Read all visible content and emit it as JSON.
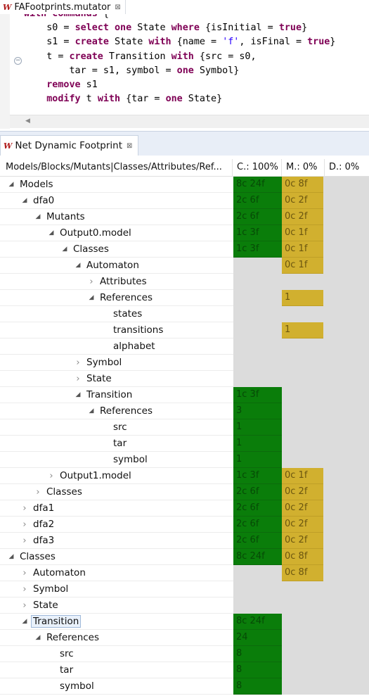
{
  "editor": {
    "tab_title": "FAFootprints.mutator",
    "tab_close": "⊠",
    "app_glyph": "W",
    "code_lines": [
      [
        [
          "kw",
          "with commands"
        ],
        [
          "t",
          " {"
        ]
      ],
      [
        [
          "t",
          "    s0 = "
        ],
        [
          "kw",
          "select one"
        ],
        [
          "t",
          " State "
        ],
        [
          "kw",
          "where"
        ],
        [
          "t",
          " {isInitial = "
        ],
        [
          "kw",
          "true"
        ],
        [
          "t",
          "}"
        ]
      ],
      [
        [
          "t",
          "    s1 = "
        ],
        [
          "kw",
          "create"
        ],
        [
          "t",
          " State "
        ],
        [
          "kw",
          "with"
        ],
        [
          "t",
          " {name = "
        ],
        [
          "str",
          "'f'"
        ],
        [
          "t",
          ", isFinal = "
        ],
        [
          "kw",
          "true"
        ],
        [
          "t",
          "}"
        ]
      ],
      [
        [
          "t",
          "    t = "
        ],
        [
          "kw",
          "create"
        ],
        [
          "t",
          " Transition "
        ],
        [
          "kw",
          "with"
        ],
        [
          "t",
          " {src = s0,"
        ]
      ],
      [
        [
          "t",
          "        tar = s1, symbol = "
        ],
        [
          "kw",
          "one"
        ],
        [
          "t",
          " Symbol}"
        ]
      ],
      [
        [
          "t",
          "    "
        ],
        [
          "kw",
          "remove"
        ],
        [
          "t",
          " s1"
        ]
      ],
      [
        [
          "t",
          "    "
        ],
        [
          "kw",
          "modify"
        ],
        [
          "t",
          " t "
        ],
        [
          "kw",
          "with"
        ],
        [
          "t",
          " {tar = "
        ],
        [
          "kw",
          "one"
        ],
        [
          "t",
          " State}"
        ]
      ]
    ],
    "fold_glyph": "−",
    "scroll_left": "◀"
  },
  "view": {
    "tab_title": "Net Dynamic Footprint",
    "tab_close": "⊠",
    "app_glyph": "W",
    "columns": {
      "tree": "Models/Blocks/Mutants|Classes/Attributes/Ref...",
      "coverage": "C.: 100%",
      "mutation": "M.: 0%",
      "deletion": "D.: 0%"
    },
    "colors": {
      "green": "#0a7d0a",
      "gold": "#d1b02f",
      "grey": "#dcdcdc"
    },
    "rows": [
      {
        "label": "Models",
        "level": 0,
        "toggle": "expanded",
        "cov": "8c 24f",
        "mut": "0c 8f"
      },
      {
        "label": "dfa0",
        "level": 1,
        "toggle": "expanded",
        "cov": "2c 6f",
        "mut": "0c 2f"
      },
      {
        "label": "Mutants",
        "level": 2,
        "toggle": "expanded",
        "cov": "2c 6f",
        "mut": "0c 2f"
      },
      {
        "label": "Output0.model",
        "level": 3,
        "toggle": "expanded",
        "cov": "1c 3f",
        "mut": "0c 1f"
      },
      {
        "label": "Classes",
        "level": 4,
        "toggle": "expanded",
        "cov": "1c 3f",
        "mut": "0c 1f"
      },
      {
        "label": "Automaton",
        "level": 5,
        "toggle": "expanded",
        "cov": "",
        "mut": "0c 1f"
      },
      {
        "label": "Attributes",
        "level": 6,
        "toggle": "collapsed",
        "cov": "",
        "mut": ""
      },
      {
        "label": "References",
        "level": 6,
        "toggle": "expanded",
        "cov": "",
        "mut": "1"
      },
      {
        "label": "states",
        "level": 7,
        "toggle": "none",
        "cov": "",
        "mut": ""
      },
      {
        "label": "transitions",
        "level": 7,
        "toggle": "none",
        "cov": "",
        "mut": "1"
      },
      {
        "label": "alphabet",
        "level": 7,
        "toggle": "none",
        "cov": "",
        "mut": ""
      },
      {
        "label": "Symbol",
        "level": 5,
        "toggle": "collapsed",
        "cov": "",
        "mut": ""
      },
      {
        "label": "State",
        "level": 5,
        "toggle": "collapsed",
        "cov": "",
        "mut": ""
      },
      {
        "label": "Transition",
        "level": 5,
        "toggle": "expanded",
        "cov": "1c 3f",
        "mut": ""
      },
      {
        "label": "References",
        "level": 6,
        "toggle": "expanded",
        "cov": "3",
        "mut": ""
      },
      {
        "label": "src",
        "level": 7,
        "toggle": "none",
        "cov": "1",
        "mut": ""
      },
      {
        "label": "tar",
        "level": 7,
        "toggle": "none",
        "cov": "1",
        "mut": ""
      },
      {
        "label": "symbol",
        "level": 7,
        "toggle": "none",
        "cov": "1",
        "mut": ""
      },
      {
        "label": "Output1.model",
        "level": 3,
        "toggle": "collapsed",
        "cov": "1c 3f",
        "mut": "0c 1f"
      },
      {
        "label": "Classes",
        "level": 2,
        "toggle": "collapsed",
        "cov": "2c 6f",
        "mut": "0c 2f"
      },
      {
        "label": "dfa1",
        "level": 1,
        "toggle": "collapsed",
        "cov": "2c 6f",
        "mut": "0c 2f"
      },
      {
        "label": "dfa2",
        "level": 1,
        "toggle": "collapsed",
        "cov": "2c 6f",
        "mut": "0c 2f"
      },
      {
        "label": "dfa3",
        "level": 1,
        "toggle": "collapsed",
        "cov": "2c 6f",
        "mut": "0c 2f"
      },
      {
        "label": "Classes",
        "level": 0,
        "toggle": "expanded",
        "cov": "8c 24f",
        "mut": "0c 8f"
      },
      {
        "label": "Automaton",
        "level": 1,
        "toggle": "collapsed",
        "cov": "",
        "mut": "0c 8f"
      },
      {
        "label": "Symbol",
        "level": 1,
        "toggle": "collapsed",
        "cov": "",
        "mut": ""
      },
      {
        "label": "State",
        "level": 1,
        "toggle": "collapsed",
        "cov": "",
        "mut": ""
      },
      {
        "label": "Transition",
        "level": 1,
        "toggle": "expanded",
        "cov": "8c 24f",
        "mut": "",
        "selected": true
      },
      {
        "label": "References",
        "level": 2,
        "toggle": "expanded",
        "cov": "24",
        "mut": ""
      },
      {
        "label": "src",
        "level": 3,
        "toggle": "none",
        "cov": "8",
        "mut": ""
      },
      {
        "label": "tar",
        "level": 3,
        "toggle": "none",
        "cov": "8",
        "mut": ""
      },
      {
        "label": "symbol",
        "level": 3,
        "toggle": "none",
        "cov": "8",
        "mut": ""
      }
    ]
  }
}
